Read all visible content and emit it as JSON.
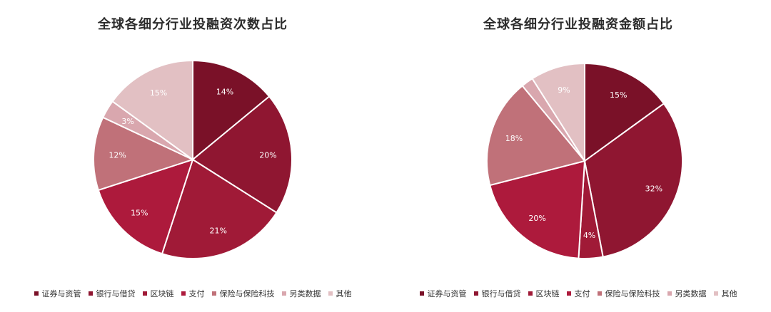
{
  "chart_data": [
    {
      "type": "pie",
      "title": "全球各细分行业投融资次数占比",
      "categories": [
        "证券与资管",
        "银行与借贷",
        "区块链",
        "支付",
        "保险与保险科技",
        "另类数据",
        "其他"
      ],
      "values": [
        14,
        20,
        21,
        15,
        12,
        3,
        15
      ],
      "labels": [
        "14%",
        "20%",
        "21%",
        "15%",
        "12%",
        "3%",
        "15%"
      ],
      "legend_position": "bottom"
    },
    {
      "type": "pie",
      "title": "全球各细分行业投融资金额占比",
      "categories": [
        "证券与资管",
        "银行与借贷",
        "区块链",
        "支付",
        "保险与保险科技",
        "另类数据",
        "其他"
      ],
      "values": [
        15,
        32,
        4,
        20,
        18,
        2,
        9
      ],
      "labels": [
        "15%",
        "32%",
        "4%",
        "20%",
        "18%",
        "",
        "9%"
      ],
      "legend_position": "bottom"
    }
  ],
  "colors": [
    "#7a1128",
    "#8f1631",
    "#a01a37",
    "#ad1a3c",
    "#c07179",
    "#d9a7ae",
    "#e2c0c3"
  ]
}
